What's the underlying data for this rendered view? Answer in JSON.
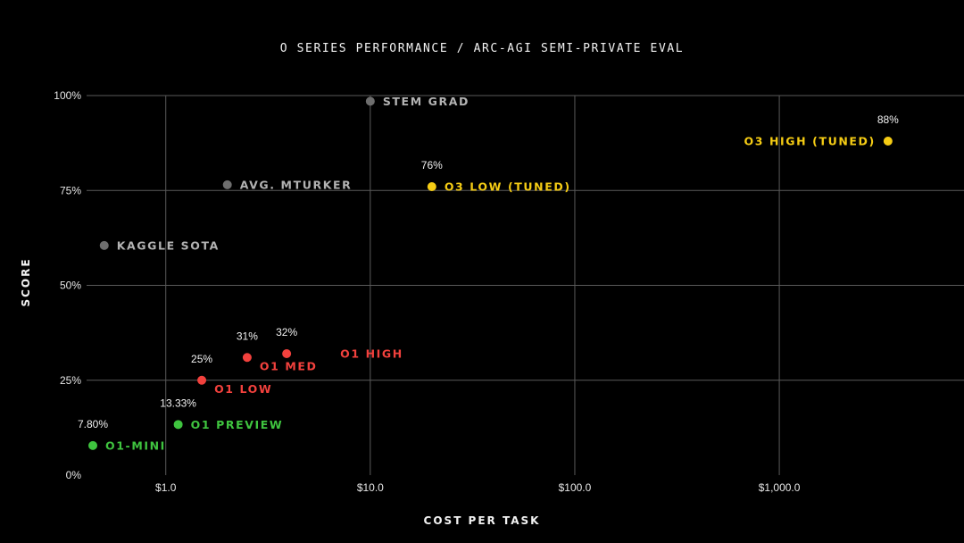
{
  "chart_data": {
    "type": "scatter",
    "title": "O SERIES PERFORMANCE / ARC-AGI SEMI-PRIVATE EVAL",
    "xlabel": "COST PER TASK",
    "ylabel": "SCORE",
    "x_scale": "log",
    "x_ticks": [
      {
        "value": 1,
        "label": "$1.0"
      },
      {
        "value": 10,
        "label": "$10.0"
      },
      {
        "value": 100,
        "label": "$100.0"
      },
      {
        "value": 1000,
        "label": "$1,000.0"
      }
    ],
    "y_ticks": [
      {
        "value": 0,
        "label": "0%"
      },
      {
        "value": 25,
        "label": "25%"
      },
      {
        "value": 50,
        "label": "50%"
      },
      {
        "value": 75,
        "label": "75%"
      },
      {
        "value": 100,
        "label": "100%"
      }
    ],
    "xlim": [
      0.41,
      8000
    ],
    "ylim": [
      0,
      100
    ],
    "grid": true,
    "colors": {
      "baseline": "#6e6e6e",
      "baseline_text": "#b3b3b3",
      "o1": "#f2413d",
      "mini": "#3fc43f",
      "o3": "#f5cc14",
      "grid": "#5a5a5a"
    },
    "points": [
      {
        "name": "STEM GRAD",
        "cost": 10,
        "score": 98.5,
        "value_label": "",
        "group": "baseline",
        "label_side": "right"
      },
      {
        "name": "AVG. MTURKER",
        "cost": 2.0,
        "score": 76.5,
        "value_label": "",
        "group": "baseline",
        "label_side": "right"
      },
      {
        "name": "KAGGLE SOTA",
        "cost": 0.5,
        "score": 60.5,
        "value_label": "",
        "group": "baseline",
        "label_side": "right"
      },
      {
        "name": "O3 LOW (TUNED)",
        "cost": 20,
        "score": 76,
        "value_label": "76%",
        "group": "o3",
        "label_side": "right"
      },
      {
        "name": "O3 HIGH (TUNED)",
        "cost": 3400,
        "score": 88,
        "value_label": "88%",
        "group": "o3",
        "label_side": "left"
      },
      {
        "name": "O1 LOW",
        "cost": 1.5,
        "score": 25,
        "value_label": "25%",
        "group": "o1",
        "label_side": "below-right"
      },
      {
        "name": "O1 MED",
        "cost": 2.5,
        "score": 31,
        "value_label": "31%",
        "group": "o1",
        "label_side": "below-right"
      },
      {
        "name": "O1 HIGH",
        "cost": 3.9,
        "score": 32,
        "value_label": "32%",
        "group": "o1",
        "label_side": "far-right"
      },
      {
        "name": "O1 PREVIEW",
        "cost": 1.15,
        "score": 13.33,
        "value_label": "13.33%",
        "group": "mini",
        "label_side": "right"
      },
      {
        "name": "O1-MINI",
        "cost": 0.44,
        "score": 7.8,
        "value_label": "7.80%",
        "group": "mini",
        "label_side": "right"
      }
    ]
  }
}
